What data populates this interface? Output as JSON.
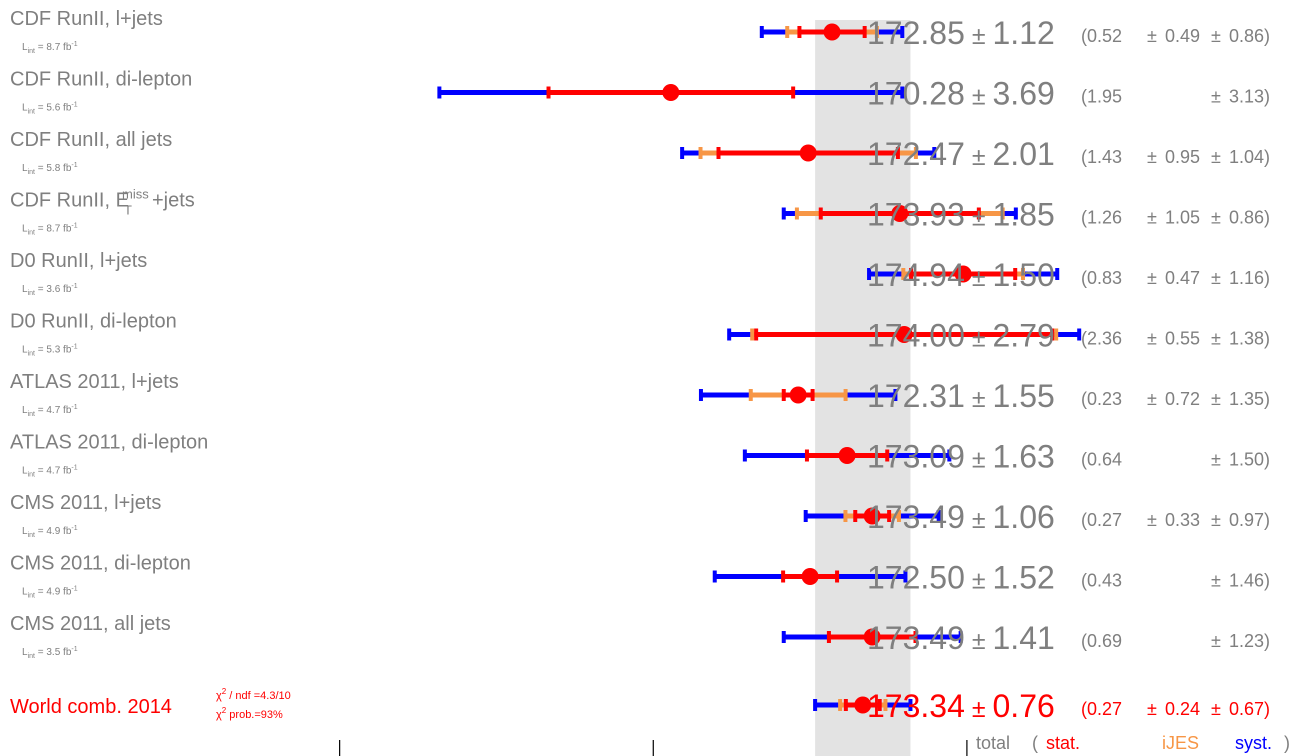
{
  "chart_data": {
    "type": "scatter",
    "title": "",
    "xlabel": "",
    "ylabel": "",
    "xlim": [
      162.2,
      177.6
    ],
    "world_band": [
      172.58,
      174.1
    ],
    "colors": {
      "stat": "#ff0000",
      "ijes": "#f79646",
      "total": "#0000ff",
      "label": "#7f7f7f",
      "combination": "#ff0000",
      "band": "#e3e3e3"
    },
    "legend": {
      "total": "total",
      "open": "(",
      "stat": "stat.",
      "ijes": "iJES",
      "syst": "syst.",
      "close": ")"
    },
    "measurements": [
      {
        "name": "CDF RunII, l+jets",
        "lumi_prefix": "L",
        "lumi_sub": "int",
        "lumi_value": " = 8.7 fb",
        "lumi_sup": "-1",
        "central": 172.85,
        "total": 1.12,
        "stat": 0.52,
        "ijes": 0.49,
        "syst": 0.86,
        "total_text": "172.85",
        "pm_total": "±",
        "total_err_text": "1.12",
        "stat_text": "(0.52",
        "pm_ijes": "±",
        "ijes_text": "0.49",
        "pm_syst": "±",
        "syst_text": "0.86)"
      },
      {
        "name": "CDF RunII, di-lepton",
        "lumi_prefix": "L",
        "lumi_sub": "int",
        "lumi_value": " = 5.6 fb",
        "lumi_sup": "-1",
        "central": 170.28,
        "total": 3.69,
        "stat": 1.95,
        "ijes": null,
        "syst": 3.13,
        "total_text": "170.28",
        "pm_total": "±",
        "total_err_text": "3.69",
        "stat_text": "(1.95",
        "pm_ijes": "",
        "ijes_text": "",
        "pm_syst": "±",
        "syst_text": "3.13)"
      },
      {
        "name": "CDF RunII, all jets",
        "lumi_prefix": "L",
        "lumi_sub": "int",
        "lumi_value": " = 5.8 fb",
        "lumi_sup": "-1",
        "central": 172.47,
        "total": 2.01,
        "stat": 1.43,
        "ijes": 0.95,
        "syst": 1.04,
        "total_text": "172.47",
        "pm_total": "±",
        "total_err_text": "2.01",
        "stat_text": "(1.43",
        "pm_ijes": "±",
        "ijes_text": "0.95",
        "pm_syst": "±",
        "syst_text": "1.04)"
      },
      {
        "name": "CDF RunII, E",
        "name_sup": "miss",
        "name_sub": "T",
        "name_suffix": "+jets",
        "lumi_prefix": "L",
        "lumi_sub": "int",
        "lumi_value": " = 8.7 fb",
        "lumi_sup": "-1",
        "central": 173.93,
        "total": 1.85,
        "stat": 1.26,
        "ijes": 1.05,
        "syst": 0.86,
        "total_text": "173.93",
        "pm_total": "±",
        "total_err_text": "1.85",
        "stat_text": "(1.26",
        "pm_ijes": "±",
        "ijes_text": "1.05",
        "pm_syst": "±",
        "syst_text": "0.86)"
      },
      {
        "name": "D0 RunII, l+jets",
        "lumi_prefix": "L",
        "lumi_sub": "int",
        "lumi_value": " = 3.6 fb",
        "lumi_sup": "-1",
        "central": 174.94,
        "total": 1.5,
        "stat": 0.83,
        "ijes": 0.47,
        "syst": 1.16,
        "total_text": "174.94",
        "pm_total": "±",
        "total_err_text": "1.50",
        "stat_text": "(0.83",
        "pm_ijes": "±",
        "ijes_text": "0.47",
        "pm_syst": "±",
        "syst_text": "1.16)"
      },
      {
        "name": "D0 RunII, di-lepton",
        "lumi_prefix": "L",
        "lumi_sub": "int",
        "lumi_value": " = 5.3 fb",
        "lumi_sup": "-1",
        "central": 174.0,
        "total": 2.79,
        "stat": 2.36,
        "ijes": 0.55,
        "syst": 1.38,
        "total_text": "174.00",
        "pm_total": "±",
        "total_err_text": "2.79",
        "stat_text": "(2.36",
        "pm_ijes": "±",
        "ijes_text": "0.55",
        "pm_syst": "±",
        "syst_text": "1.38)"
      },
      {
        "name": "ATLAS 2011, l+jets",
        "lumi_prefix": "L",
        "lumi_sub": "int",
        "lumi_value": " = 4.7 fb",
        "lumi_sup": "-1",
        "central": 172.31,
        "total": 1.55,
        "stat": 0.23,
        "ijes": 0.72,
        "syst": 1.35,
        "total_text": "172.31",
        "pm_total": "±",
        "total_err_text": "1.55",
        "stat_text": "(0.23",
        "pm_ijes": "±",
        "ijes_text": "0.72",
        "pm_syst": "±",
        "syst_text": "1.35)"
      },
      {
        "name": "ATLAS 2011, di-lepton",
        "lumi_prefix": "L",
        "lumi_sub": "int",
        "lumi_value": " = 4.7 fb",
        "lumi_sup": "-1",
        "central": 173.09,
        "total": 1.63,
        "stat": 0.64,
        "ijes": null,
        "syst": 1.5,
        "total_text": "173.09",
        "pm_total": "±",
        "total_err_text": "1.63",
        "stat_text": "(0.64",
        "pm_ijes": "",
        "ijes_text": "",
        "pm_syst": "±",
        "syst_text": "1.50)"
      },
      {
        "name": "CMS 2011, l+jets",
        "lumi_prefix": "L",
        "lumi_sub": "int",
        "lumi_value": " = 4.9 fb",
        "lumi_sup": "-1",
        "central": 173.49,
        "total": 1.06,
        "stat": 0.27,
        "ijes": 0.33,
        "syst": 0.97,
        "total_text": "173.49",
        "pm_total": "±",
        "total_err_text": "1.06",
        "stat_text": "(0.27",
        "pm_ijes": "±",
        "ijes_text": "0.33",
        "pm_syst": "±",
        "syst_text": "0.97)"
      },
      {
        "name": "CMS 2011, di-lepton",
        "lumi_prefix": "L",
        "lumi_sub": "int",
        "lumi_value": " = 4.9 fb",
        "lumi_sup": "-1",
        "central": 172.5,
        "total": 1.52,
        "stat": 0.43,
        "ijes": null,
        "syst": 1.46,
        "total_text": "172.50",
        "pm_total": "±",
        "total_err_text": "1.52",
        "stat_text": "(0.43",
        "pm_ijes": "",
        "ijes_text": "",
        "pm_syst": "±",
        "syst_text": "1.46)"
      },
      {
        "name": "CMS 2011, all jets",
        "lumi_prefix": "L",
        "lumi_sub": "int",
        "lumi_value": " = 3.5 fb",
        "lumi_sup": "-1",
        "central": 173.49,
        "total": 1.41,
        "stat": 0.69,
        "ijes": null,
        "syst": 1.23,
        "total_text": "173.49",
        "pm_total": "±",
        "total_err_text": "1.41",
        "stat_text": "(0.69",
        "pm_ijes": "",
        "ijes_text": "",
        "pm_syst": "±",
        "syst_text": "1.23)"
      }
    ],
    "combination": {
      "name": "World comb. 2014",
      "chi2_symbol": "χ",
      "chi2_sup": "2",
      "chi2_ndf_text": " / ndf =4.3/10",
      "chi2_prob_text": " prob.=93%",
      "central": 173.34,
      "total": 0.76,
      "stat": 0.27,
      "ijes": 0.24,
      "syst": 0.67,
      "total_text": "173.34",
      "pm_total": "±",
      "total_err_text": "0.76",
      "stat_text": "(0.27",
      "pm_ijes": "±",
      "ijes_text": "0.24",
      "pm_syst": "±",
      "syst_text": "0.67)"
    },
    "axis_ticks": [
      165,
      170,
      175
    ]
  }
}
